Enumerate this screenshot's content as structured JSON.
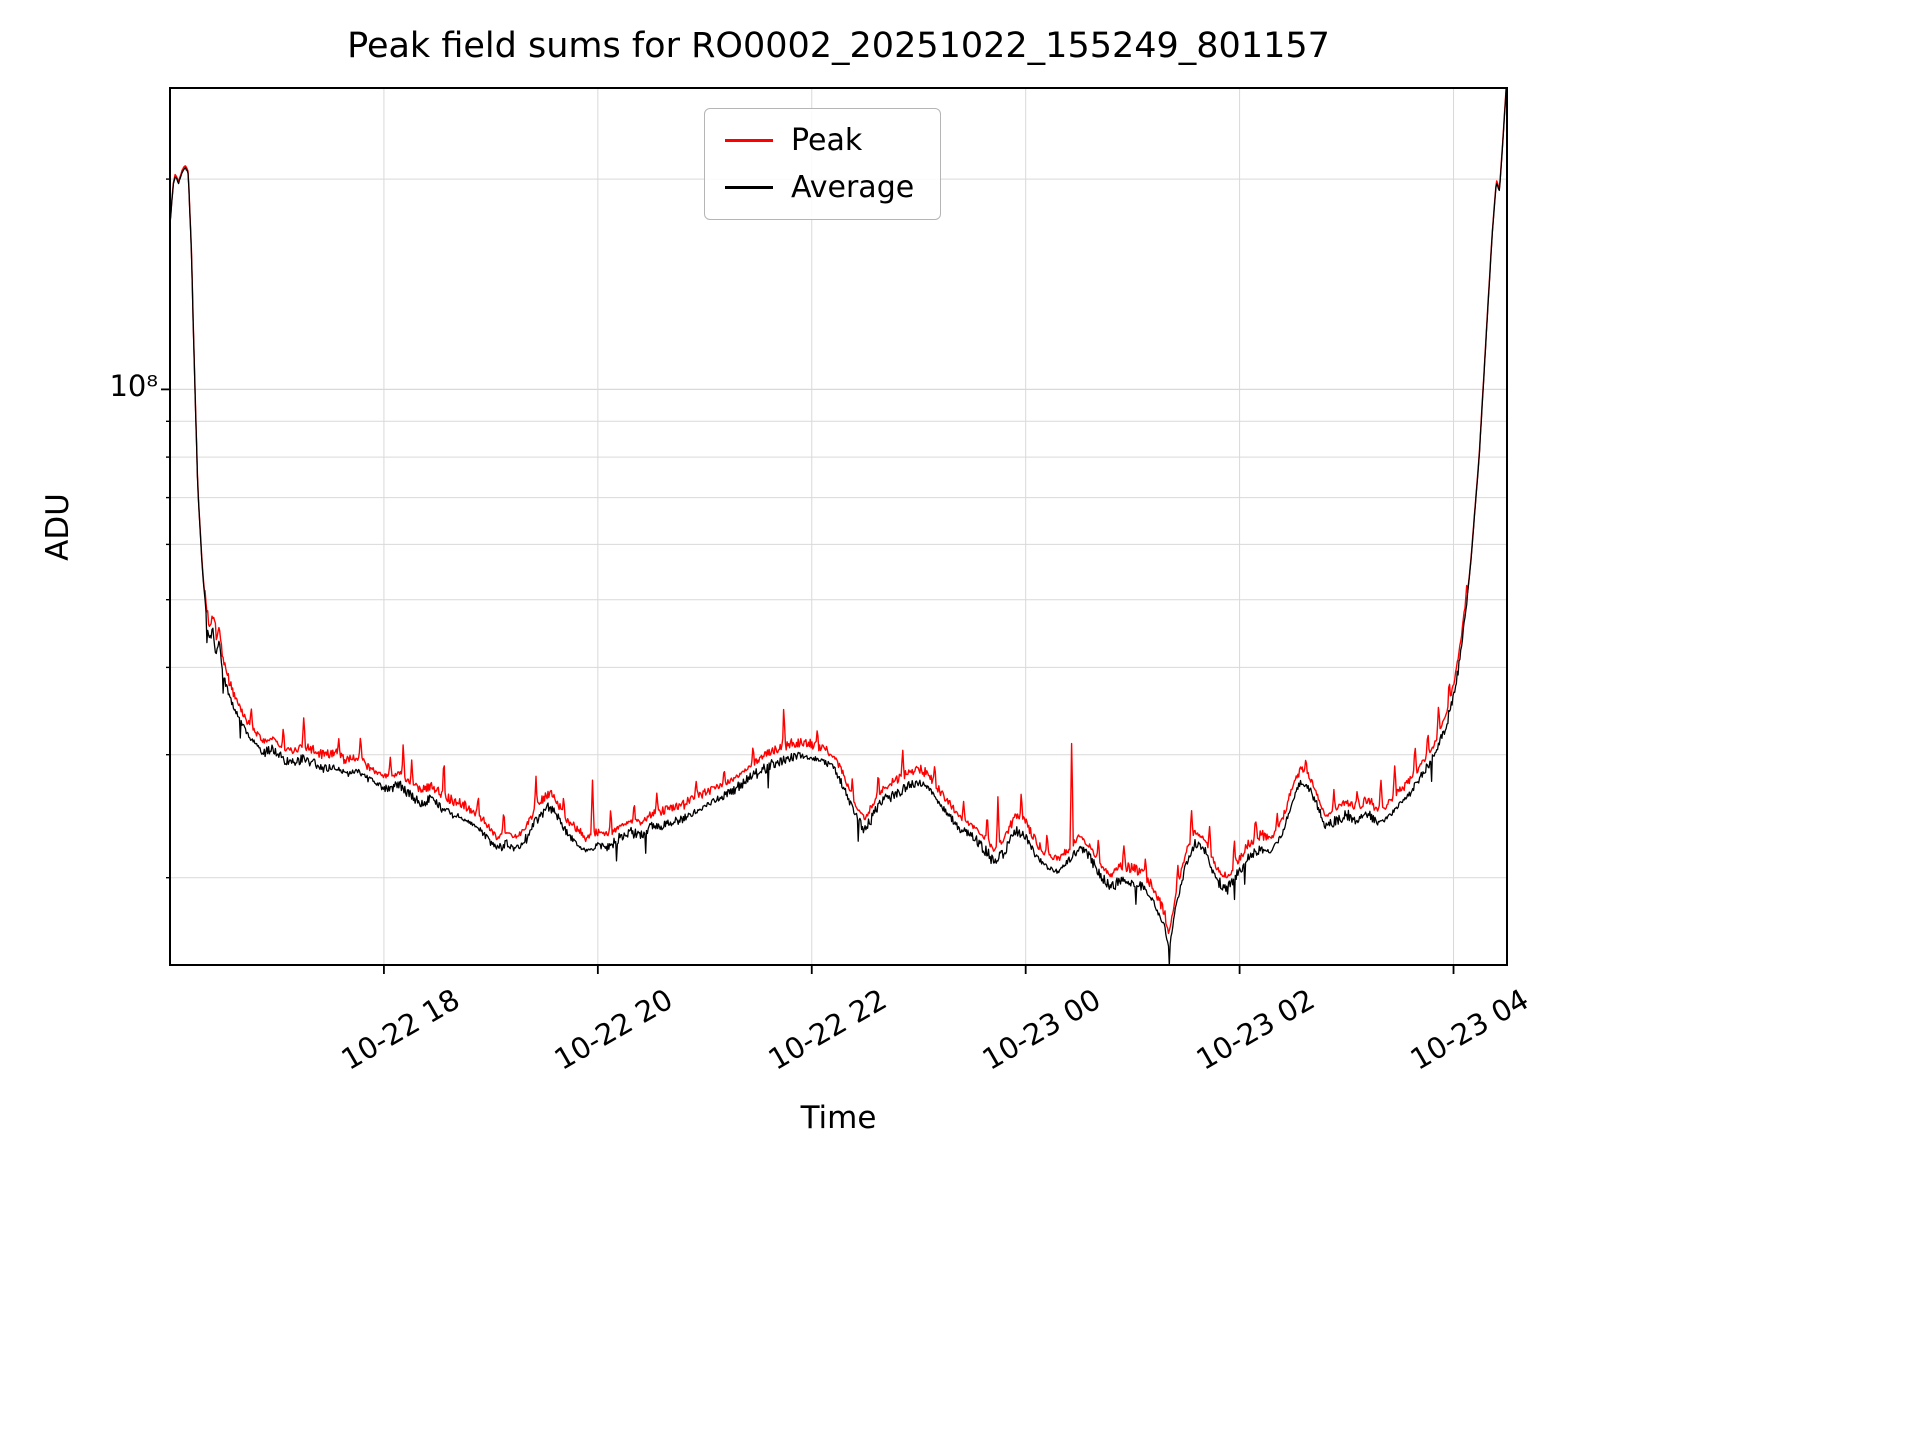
{
  "title": "Peak field sums for RO0002_20251022_155249_801157",
  "axes": {
    "x_label": "Time",
    "y_label": "ADU",
    "y_tick_label": "10⁸"
  },
  "chart_data": {
    "type": "line",
    "title": "Peak field sums for RO0002_20251022_155249_801157",
    "xlabel": "Time",
    "ylabel": "ADU",
    "y_scale": "log",
    "grid": true,
    "grid_color": "#d9d9d9",
    "legend_position": "upper center",
    "x_unit": "hours since 10-22 00:00",
    "xlim": [
      16.0,
      28.5
    ],
    "ylim": [
      15000000.0,
      270000000.0
    ],
    "x_ticks": [
      {
        "value": 18,
        "label": "10-22 18"
      },
      {
        "value": 20,
        "label": "10-22 20"
      },
      {
        "value": 22,
        "label": "10-22 22"
      },
      {
        "value": 24,
        "label": "10-23 00"
      },
      {
        "value": 26,
        "label": "10-23 02"
      },
      {
        "value": 28,
        "label": "10-23 04"
      }
    ],
    "y_major_ticks": [
      {
        "value": 100000000.0,
        "label": "10⁸"
      }
    ],
    "y_minor_ticks": [
      20000000.0,
      30000000.0,
      40000000.0,
      50000000.0,
      60000000.0,
      70000000.0,
      80000000.0,
      90000000.0,
      200000000.0
    ],
    "series": [
      {
        "name": "Peak",
        "color": "#ff0000",
        "offset_ratio": 0.03,
        "noise_amp": 0.022,
        "spikes": [
          [
            16.42,
            0.06
          ],
          [
            16.76,
            0.08
          ],
          [
            17.06,
            0.07
          ],
          [
            17.25,
            0.1
          ],
          [
            17.58,
            0.06
          ],
          [
            17.78,
            0.09
          ],
          [
            18.06,
            0.07
          ],
          [
            18.18,
            0.11
          ],
          [
            18.26,
            0.09
          ],
          [
            18.56,
            0.13
          ],
          [
            18.88,
            0.07
          ],
          [
            19.12,
            0.09
          ],
          [
            19.42,
            0.12
          ],
          [
            19.68,
            0.07
          ],
          [
            19.95,
            0.22
          ],
          [
            20.12,
            0.09
          ],
          [
            20.34,
            0.07
          ],
          [
            20.55,
            0.07
          ],
          [
            20.92,
            0.06
          ],
          [
            21.18,
            0.06
          ],
          [
            21.45,
            0.07
          ],
          [
            21.74,
            0.15
          ],
          [
            22.05,
            0.06
          ],
          [
            22.38,
            0.07
          ],
          [
            22.62,
            0.08
          ],
          [
            22.85,
            0.08
          ],
          [
            23.15,
            0.06
          ],
          [
            23.42,
            0.07
          ],
          [
            23.64,
            0.11
          ],
          [
            23.74,
            0.18
          ],
          [
            23.96,
            0.1
          ],
          [
            24.2,
            0.08
          ],
          [
            24.43,
            0.42
          ],
          [
            24.68,
            0.08
          ],
          [
            24.92,
            0.09
          ],
          [
            25.12,
            0.07
          ],
          [
            25.42,
            0.08
          ],
          [
            25.55,
            0.11
          ],
          [
            25.72,
            0.09
          ],
          [
            25.95,
            0.09
          ],
          [
            26.15,
            0.07
          ],
          [
            26.35,
            0.07
          ],
          [
            26.62,
            0.06
          ],
          [
            26.88,
            0.07
          ],
          [
            27.1,
            0.07
          ],
          [
            27.32,
            0.14
          ],
          [
            27.45,
            0.12
          ],
          [
            27.64,
            0.12
          ],
          [
            27.76,
            0.09
          ],
          [
            27.86,
            0.1
          ],
          [
            27.96,
            0.08
          ]
        ]
      },
      {
        "name": "Average",
        "color": "#000000",
        "offset_ratio": 0,
        "noise_amp": 0.012,
        "spikes": []
      }
    ],
    "anchors": [
      [
        16.0,
        172000000.0
      ],
      [
        16.03,
        196000000.0
      ],
      [
        16.05,
        202000000.0
      ],
      [
        16.08,
        197000000.0
      ],
      [
        16.11,
        204000000.0
      ],
      [
        16.14,
        208000000.0
      ],
      [
        16.17,
        204000000.0
      ],
      [
        16.2,
        158000000.0
      ],
      [
        16.23,
        104000000.0
      ],
      [
        16.26,
        72000000.0
      ],
      [
        16.3,
        56000000.0
      ],
      [
        16.34,
        47000000.0
      ],
      [
        16.37,
        43500000.0
      ],
      [
        16.4,
        45500000.0
      ],
      [
        16.43,
        41500000.0
      ],
      [
        16.46,
        43500000.0
      ],
      [
        16.49,
        39500000.0
      ],
      [
        16.53,
        37500000.0
      ],
      [
        16.58,
        35500000.0
      ],
      [
        16.64,
        34000000.0
      ],
      [
        16.72,
        32200000.0
      ],
      [
        16.8,
        31000000.0
      ],
      [
        16.88,
        30200000.0
      ],
      [
        16.96,
        30600000.0
      ],
      [
        17.05,
        29600000.0
      ],
      [
        17.15,
        29200000.0
      ],
      [
        17.25,
        29600000.0
      ],
      [
        17.35,
        29100000.0
      ],
      [
        17.45,
        28600000.0
      ],
      [
        17.55,
        28900000.0
      ],
      [
        17.65,
        28100000.0
      ],
      [
        17.75,
        28500000.0
      ],
      [
        17.85,
        27700000.0
      ],
      [
        17.95,
        27100000.0
      ],
      [
        18.05,
        26900000.0
      ],
      [
        18.15,
        27200000.0
      ],
      [
        18.25,
        26200000.0
      ],
      [
        18.35,
        25600000.0
      ],
      [
        18.45,
        25900000.0
      ],
      [
        18.55,
        25100000.0
      ],
      [
        18.65,
        24600000.0
      ],
      [
        18.75,
        24300000.0
      ],
      [
        18.85,
        23800000.0
      ],
      [
        18.95,
        23000000.0
      ],
      [
        19.05,
        22000000.0
      ],
      [
        19.15,
        22300000.0
      ],
      [
        19.25,
        22000000.0
      ],
      [
        19.35,
        23000000.0
      ],
      [
        19.45,
        24500000.0
      ],
      [
        19.55,
        25300000.0
      ],
      [
        19.62,
        24600000.0
      ],
      [
        19.7,
        23300000.0
      ],
      [
        19.8,
        22400000.0
      ],
      [
        19.9,
        21800000.0
      ],
      [
        20.0,
        22300000.0
      ],
      [
        20.1,
        22100000.0
      ],
      [
        20.2,
        22800000.0
      ],
      [
        20.3,
        23300000.0
      ],
      [
        20.4,
        23000000.0
      ],
      [
        20.5,
        23600000.0
      ],
      [
        20.6,
        23800000.0
      ],
      [
        20.7,
        24000000.0
      ],
      [
        20.8,
        24300000.0
      ],
      [
        20.9,
        24800000.0
      ],
      [
        21.0,
        25300000.0
      ],
      [
        21.1,
        25800000.0
      ],
      [
        21.2,
        26300000.0
      ],
      [
        21.3,
        26900000.0
      ],
      [
        21.4,
        27600000.0
      ],
      [
        21.5,
        28300000.0
      ],
      [
        21.6,
        28900000.0
      ],
      [
        21.7,
        29300000.0
      ],
      [
        21.8,
        29700000.0
      ],
      [
        21.9,
        29900000.0
      ],
      [
        22.0,
        29700000.0
      ],
      [
        22.1,
        29400000.0
      ],
      [
        22.2,
        28800000.0
      ],
      [
        22.3,
        27000000.0
      ],
      [
        22.4,
        24600000.0
      ],
      [
        22.5,
        23400000.0
      ],
      [
        22.6,
        25000000.0
      ],
      [
        22.7,
        26000000.0
      ],
      [
        22.8,
        26400000.0
      ],
      [
        22.9,
        27100000.0
      ],
      [
        23.0,
        27400000.0
      ],
      [
        23.1,
        26800000.0
      ],
      [
        23.2,
        25400000.0
      ],
      [
        23.3,
        24400000.0
      ],
      [
        23.4,
        23400000.0
      ],
      [
        23.5,
        22900000.0
      ],
      [
        23.6,
        22100000.0
      ],
      [
        23.7,
        21100000.0
      ],
      [
        23.8,
        21700000.0
      ],
      [
        23.9,
        23400000.0
      ],
      [
        24.0,
        22900000.0
      ],
      [
        24.1,
        21400000.0
      ],
      [
        24.2,
        20700000.0
      ],
      [
        24.3,
        20400000.0
      ],
      [
        24.4,
        21100000.0
      ],
      [
        24.5,
        22100000.0
      ],
      [
        24.6,
        21400000.0
      ],
      [
        24.7,
        20100000.0
      ],
      [
        24.8,
        19400000.0
      ],
      [
        24.9,
        19900000.0
      ],
      [
        25.0,
        19700000.0
      ],
      [
        25.1,
        19400000.0
      ],
      [
        25.2,
        18400000.0
      ],
      [
        25.3,
        17000000.0
      ],
      [
        25.34,
        15800000.0
      ],
      [
        25.4,
        18000000.0
      ],
      [
        25.5,
        21000000.0
      ],
      [
        25.58,
        22400000.0
      ],
      [
        25.68,
        21900000.0
      ],
      [
        25.78,
        19900000.0
      ],
      [
        25.88,
        19200000.0
      ],
      [
        26.0,
        20500000.0
      ],
      [
        26.1,
        21500000.0
      ],
      [
        26.2,
        22000000.0
      ],
      [
        26.3,
        21800000.0
      ],
      [
        26.4,
        23100000.0
      ],
      [
        26.5,
        26000000.0
      ],
      [
        26.58,
        27600000.0
      ],
      [
        26.64,
        27000000.0
      ],
      [
        26.7,
        26000000.0
      ],
      [
        26.8,
        23600000.0
      ],
      [
        26.9,
        24100000.0
      ],
      [
        27.0,
        24600000.0
      ],
      [
        27.1,
        24200000.0
      ],
      [
        27.2,
        24800000.0
      ],
      [
        27.3,
        23800000.0
      ],
      [
        27.4,
        24500000.0
      ],
      [
        27.5,
        25500000.0
      ],
      [
        27.6,
        26500000.0
      ],
      [
        27.7,
        28000000.0
      ],
      [
        27.8,
        29500000.0
      ],
      [
        27.9,
        32000000.0
      ],
      [
        28.0,
        36000000.0
      ],
      [
        28.08,
        43000000.0
      ],
      [
        28.16,
        56000000.0
      ],
      [
        28.24,
        80000000.0
      ],
      [
        28.3,
        115000000.0
      ],
      [
        28.36,
        165000000.0
      ],
      [
        28.4,
        198000000.0
      ],
      [
        28.43,
        192000000.0
      ],
      [
        28.46,
        225000000.0
      ],
      [
        28.5,
        280000000.0
      ]
    ],
    "noise": {
      "samples": 1560,
      "damp_above": 50000000.0,
      "damp_factor": 0.15
    }
  }
}
